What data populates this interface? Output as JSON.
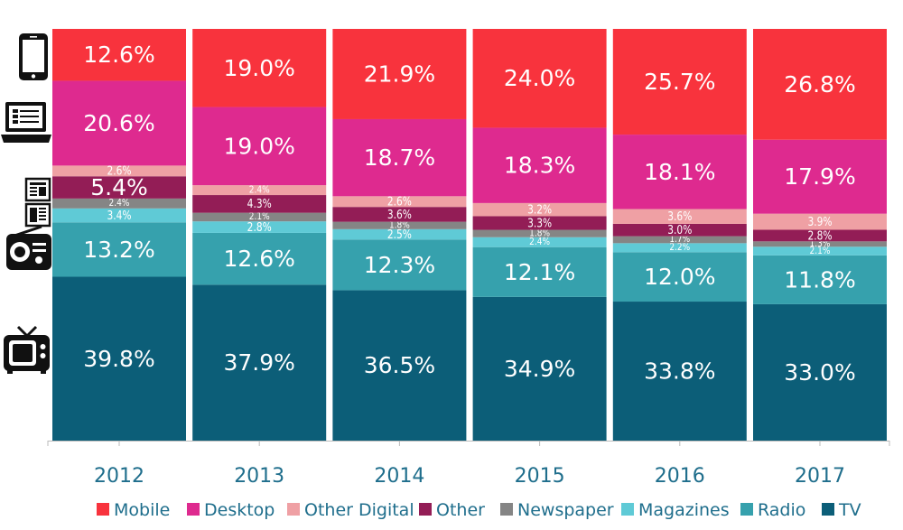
{
  "chart_data": {
    "type": "bar",
    "stacked": true,
    "categories": [
      "2012",
      "2013",
      "2014",
      "2015",
      "2016",
      "2017"
    ],
    "series": [
      {
        "name": "TV",
        "color": "#0c5e78",
        "values": [
          39.8,
          37.9,
          36.5,
          34.9,
          33.8,
          33.0
        ],
        "labels": [
          "39.8%",
          "37.9%",
          "36.5%",
          "34.9%",
          "33.8%",
          "33.0%"
        ]
      },
      {
        "name": "Radio",
        "color": "#36a1ad",
        "values": [
          13.2,
          12.6,
          12.3,
          12.1,
          12.0,
          11.8
        ],
        "labels": [
          "13.2%",
          "12.6%",
          "12.3%",
          "12.1%",
          "12.0%",
          "11.8%"
        ]
      },
      {
        "name": "Magazines",
        "color": "#5fcad6",
        "values": [
          3.4,
          2.8,
          2.5,
          2.4,
          2.2,
          2.1
        ],
        "labels": [
          "3.4%",
          "2.8%",
          "2.5%",
          "2.4%",
          "2.2%",
          "2.1%"
        ]
      },
      {
        "name": "Newspaper",
        "color": "#858585",
        "values": [
          2.4,
          2.1,
          1.8,
          1.8,
          1.7,
          1.3
        ],
        "labels": [
          "2.4%",
          "2.1%",
          "1.8%",
          "1.8%",
          "1.7%",
          "1.3%"
        ]
      },
      {
        "name": "Other",
        "color": "#931d56",
        "values": [
          5.4,
          4.3,
          3.6,
          3.3,
          3.0,
          2.8
        ],
        "labels": [
          "5.4%",
          "4.3%",
          "3.6%",
          "3.3%",
          "3.0%",
          "2.8%"
        ]
      },
      {
        "name": "Other Digital",
        "color": "#efa0a4",
        "values": [
          2.6,
          2.4,
          2.6,
          3.2,
          3.6,
          3.9
        ],
        "labels": [
          "2.6%",
          "2.4%",
          "2.6%",
          "3.2%",
          "3.6%",
          "3.9%"
        ]
      },
      {
        "name": "Desktop",
        "color": "#de2a8f",
        "values": [
          20.6,
          19.0,
          18.7,
          18.3,
          18.1,
          17.9
        ],
        "labels": [
          "20.6%",
          "19.0%",
          "18.7%",
          "18.3%",
          "18.1%",
          "17.9%"
        ]
      },
      {
        "name": "Mobile",
        "color": "#f8333d",
        "values": [
          12.6,
          19.0,
          21.9,
          24.0,
          25.7,
          26.8
        ],
        "labels": [
          "12.6%",
          "19.0%",
          "21.9%",
          "24.0%",
          "25.7%",
          "26.8%"
        ]
      }
    ],
    "legend": [
      "Mobile",
      "Desktop",
      "Other Digital",
      "Other",
      "Newspaper",
      "Magazines",
      "Radio",
      "TV"
    ],
    "legend_placement": "bottom",
    "ylim": [
      0,
      100
    ],
    "grid": false,
    "icons": [
      "smartphone-icon",
      "laptop-icon",
      "newspaper-icon",
      "radio-icon",
      "tv-icon"
    ],
    "text_color": "#1f6e8c"
  }
}
